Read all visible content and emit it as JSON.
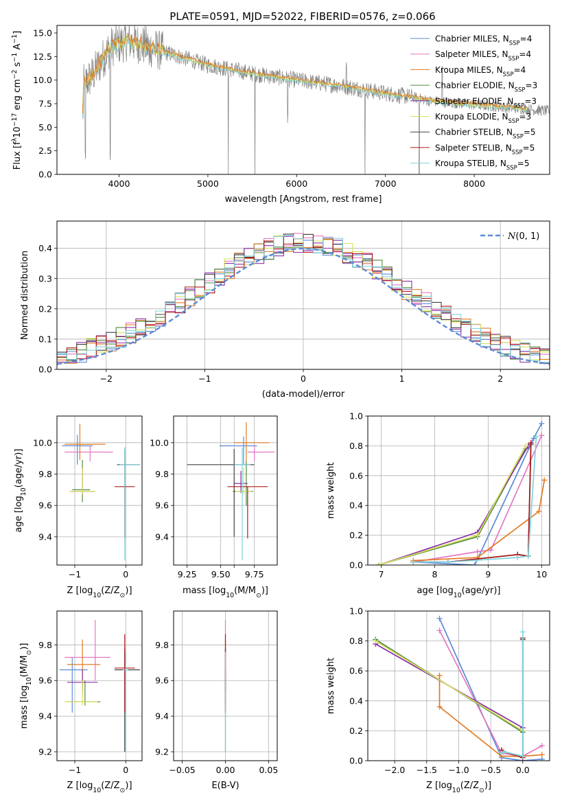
{
  "figure": {
    "title": "PLATE=0591, MJD=52022, FIBERID=0576, z=0.066"
  },
  "series_styles": [
    {
      "name": "Chabrier MILES, N$_{SSP}$=4",
      "color": "#5b8ad8",
      "label_main": "Chabrier MILES, N",
      "label_sub": "SSP",
      "label_end": "=4"
    },
    {
      "name": "Salpeter MILES, N$_{SSP}$=4",
      "color": "#e377c2",
      "label_main": "Salpeter MILES, N",
      "label_sub": "SSP",
      "label_end": "=4"
    },
    {
      "name": "Kroupa MILES, N$_{SSP}$=4",
      "color": "#e07b20",
      "label_main": "Kroupa MILES, N",
      "label_sub": "SSP",
      "label_end": "=4"
    },
    {
      "name": "Chabrier ELODIE, N$_{SSP}$=3",
      "color": "#4f8a3c",
      "label_main": "Chabrier ELODIE, N",
      "label_sub": "SSP",
      "label_end": "=3"
    },
    {
      "name": "Salpeter ELODIE, N$_{SSP}$=3",
      "color": "#8b2fa8",
      "label_main": "Salpeter ELODIE, N",
      "label_sub": "SSP",
      "label_end": "=3"
    },
    {
      "name": "Kroupa ELODIE, N$_{SSP}$=3",
      "color": "#d6e05a",
      "label_main": "Kroupa ELODIE, N",
      "label_sub": "SSP",
      "label_end": "=3"
    },
    {
      "name": "Chabrier STELIB, N$_{SSP}$=5",
      "color": "#404040",
      "label_main": "Chabrier STELIB, N",
      "label_sub": "SSP",
      "label_end": "=5"
    },
    {
      "name": "Salpeter STELIB, N$_{SSP}$=5",
      "color": "#b01818",
      "label_main": "Salpeter STELIB, N",
      "label_sub": "SSP",
      "label_end": "=5"
    },
    {
      "name": "Kroupa STELIB, N$_{SSP}$=5",
      "color": "#7fd3dc",
      "label_main": "Kroupa STELIB, N",
      "label_sub": "SSP",
      "label_end": "=5"
    }
  ],
  "chart_data": [
    {
      "id": "spectrum",
      "type": "line",
      "title": "PLATE=0591, MJD=52022, FIBERID=0576, z=0.066",
      "xlabel": "wavelength [Angstrom, rest frame]",
      "ylabel_parts": [
        "Flux [f",
        "λ",
        "10",
        "−17",
        " erg cm",
        "−2",
        " s",
        "−1",
        " A",
        "−1",
        "]"
      ],
      "xlim": [
        3300,
        8850
      ],
      "ylim": [
        0,
        15.8
      ],
      "xticks": [
        4000,
        5000,
        6000,
        7000,
        8000
      ],
      "xtick_labels": [
        "4000",
        "5000",
        "6000",
        "7000",
        "8000"
      ],
      "yticks": [
        0,
        2.5,
        5,
        7.5,
        10,
        12.5,
        15
      ],
      "ytick_labels": [
        "0.0",
        "2.5",
        "5.0",
        "7.5",
        "10.0",
        "12.5",
        "15.0"
      ],
      "grid": false,
      "legend": "upper right",
      "continuum": {
        "x": [
          3600,
          3700,
          3800,
          3900,
          4000,
          4100,
          4300,
          4500,
          5000,
          5500,
          6000,
          6500,
          7000,
          7300,
          7500,
          8000,
          8500,
          8850
        ],
        "y": [
          9.5,
          10.5,
          12.0,
          13.5,
          13.8,
          14.2,
          13.6,
          13.0,
          11.6,
          10.7,
          10.0,
          9.4,
          8.6,
          8.2,
          7.8,
          7.4,
          7.0,
          6.7
        ]
      },
      "data_color": "#808080",
      "model_colors": [
        "#7fd3dc",
        "#d6e05a",
        "#e07b20"
      ]
    },
    {
      "id": "residuals",
      "type": "histogram",
      "xlabel": "(data-model)/error",
      "ylabel": "Normed distribution",
      "xlim": [
        -2.5,
        2.5
      ],
      "ylim": [
        0,
        0.49
      ],
      "xticks": [
        -2,
        -1,
        0,
        1,
        2
      ],
      "xtick_labels": [
        "−2",
        "−1",
        "0",
        "1",
        "2"
      ],
      "yticks": [
        0,
        0.1,
        0.2,
        0.3,
        0.4
      ],
      "ytick_labels": [
        "0.0",
        "0.1",
        "0.2",
        "0.3",
        "0.4"
      ],
      "grid": true,
      "legend": "upper right",
      "normal_label_script": "N",
      "normal_label_rest": "(0, 1)",
      "normal_color": "#5b8ad8",
      "bin_width": 0.1
    },
    {
      "id": "age-Z",
      "type": "errorbar",
      "xlabel_parts": [
        "Z [log",
        "10",
        "(Z/Z",
        "⊙",
        ")]"
      ],
      "ylabel_parts": [
        "age  [log",
        "10",
        "(age/yr)]"
      ],
      "xlim": [
        -1.35,
        0.32
      ],
      "ylim": [
        9.22,
        10.17
      ],
      "xticks": [
        -1,
        0
      ],
      "xtick_labels": [
        "−1",
        "0"
      ],
      "yticks": [
        9.4,
        9.6,
        9.8,
        10.0
      ],
      "ytick_labels": [
        "9.4",
        "9.6",
        "9.8",
        "10.0"
      ],
      "grid": true,
      "points": [
        {
          "x": -0.95,
          "y": 9.98,
          "xerr": [
            0.3,
            0.3
          ],
          "yerr": [
            0.12,
            0.07
          ]
        },
        {
          "x": -0.7,
          "y": 9.94,
          "xerr": [
            0.5,
            0.45
          ],
          "yerr": [
            0.06,
            0.04
          ]
        },
        {
          "x": -0.9,
          "y": 9.99,
          "xerr": [
            0.3,
            0.5
          ],
          "yerr": [
            0.1,
            0.13
          ]
        },
        {
          "x": -0.85,
          "y": 9.7,
          "xerr": [
            0.2,
            0.15
          ],
          "yerr": [
            0.08,
            0.19
          ]
        },
        {
          "x": -0.85,
          "y": 9.69,
          "xerr": [
            0.25,
            0.25
          ],
          "yerr": [
            0.02,
            0.15
          ]
        },
        {
          "x": -0.85,
          "y": 9.69,
          "xerr": [
            0.25,
            0.25
          ],
          "yerr": [
            0.02,
            0.15
          ]
        },
        {
          "x": -0.02,
          "y": 9.86,
          "xerr": [
            0.15,
            0.3
          ],
          "yerr": [
            0.46,
            0.1
          ]
        },
        {
          "x": -0.02,
          "y": 9.72,
          "xerr": [
            0.2,
            0.2
          ],
          "yerr": [
            0.33,
            0.0
          ]
        },
        {
          "x": -0.02,
          "y": 9.86,
          "xerr": [
            0.1,
            0.3
          ],
          "yerr": [
            0.61,
            0.11
          ]
        }
      ]
    },
    {
      "id": "age-mass",
      "type": "errorbar",
      "xlabel_parts": [
        "mass [log",
        "10",
        "(M/M",
        "⊙",
        ")]"
      ],
      "ylabel_parts": [],
      "xlim": [
        9.15,
        9.92
      ],
      "ylim": [
        9.22,
        10.17
      ],
      "xticks": [
        9.25,
        9.5,
        9.6,
        9.75
      ],
      "xtick_labels": [
        "9.25",
        "9.50",
        "",
        "9.75"
      ],
      "yticks": [
        9.4,
        9.6,
        9.8,
        10.0
      ],
      "ytick_labels": [
        "9.4",
        "9.6",
        "9.8",
        "10.0"
      ],
      "grid": true,
      "points": [
        {
          "x": 9.67,
          "y": 9.98,
          "xerr": [
            0.18,
            0.1
          ],
          "yerr": [
            0.12,
            0.06
          ]
        },
        {
          "x": 9.75,
          "y": 9.94,
          "xerr": [
            0.05,
            0.15
          ],
          "yerr": [
            0.06,
            0.04
          ]
        },
        {
          "x": 9.69,
          "y": 10.0,
          "xerr": [
            0.09,
            0.17
          ],
          "yerr": [
            0.14,
            0.13
          ]
        },
        {
          "x": 9.69,
          "y": 9.69,
          "xerr": [
            0.1,
            0.05
          ],
          "yerr": [
            0.09,
            0.19
          ]
        },
        {
          "x": 9.65,
          "y": 9.74,
          "xerr": [
            0.05,
            0.05
          ],
          "yerr": [
            0.06,
            0.08
          ]
        },
        {
          "x": 9.67,
          "y": 9.69,
          "xerr": [
            0.06,
            0.06
          ],
          "yerr": [
            0.02,
            0.15
          ]
        },
        {
          "x": 9.6,
          "y": 9.86,
          "xerr": [
            0.35,
            0.15
          ],
          "yerr": [
            0.46,
            0.1
          ]
        },
        {
          "x": 9.7,
          "y": 9.72,
          "xerr": [
            0.15,
            0.15
          ],
          "yerr": [
            0.33,
            0.0
          ]
        },
        {
          "x": 9.66,
          "y": 9.86,
          "xerr": [
            0.06,
            0.06
          ],
          "yerr": [
            0.61,
            0.11
          ]
        }
      ]
    },
    {
      "id": "weight-age",
      "type": "line",
      "xlabel_parts": [
        "age  [log",
        "10",
        "(age/yr)]"
      ],
      "ylabel": "mass weight",
      "xlim": [
        6.75,
        10.15
      ],
      "ylim": [
        0,
        1.0
      ],
      "xticks": [
        7,
        8,
        9,
        10
      ],
      "xtick_labels": [
        "7",
        "8",
        "9",
        "10"
      ],
      "yticks": [
        0,
        0.2,
        0.4,
        0.6,
        0.8,
        1.0
      ],
      "ytick_labels": [
        "0.0",
        "0.2",
        "0.4",
        "0.6",
        "0.8",
        "1.0"
      ],
      "grid": true,
      "series": [
        {
          "x": [
            7.6,
            8.75,
            9.85,
            10.0
          ],
          "y": [
            0.02,
            0.0,
            0.85,
            0.95
          ]
        },
        {
          "x": [
            7.6,
            8.8,
            9.05,
            10.0
          ],
          "y": [
            0.02,
            0.09,
            0.1,
            0.87
          ]
        },
        {
          "x": [
            7.6,
            8.8,
            9.95,
            10.05
          ],
          "y": [
            0.03,
            0.05,
            0.36,
            0.57
          ]
        },
        {
          "x": [
            6.95,
            8.8,
            9.7
          ],
          "y": [
            0.0,
            0.19,
            0.78
          ]
        },
        {
          "x": [
            6.95,
            8.8,
            9.75
          ],
          "y": [
            0.0,
            0.22,
            0.8
          ]
        },
        {
          "x": [
            6.95,
            8.8,
            9.7
          ],
          "y": [
            0.0,
            0.2,
            0.8
          ]
        },
        {
          "x": [
            7.6,
            8.25,
            9.55,
            9.75,
            9.8
          ],
          "y": [
            0.02,
            0.02,
            0.07,
            0.06,
            0.81
          ]
        },
        {
          "x": [
            7.6,
            8.25,
            9.55,
            9.75,
            9.8
          ],
          "y": [
            0.02,
            0.02,
            0.07,
            0.06,
            0.82
          ]
        },
        {
          "x": [
            7.6,
            8.25,
            9.55,
            9.75,
            9.9
          ],
          "y": [
            0.02,
            0.02,
            0.05,
            0.06,
            0.86
          ]
        }
      ]
    },
    {
      "id": "mass-Z",
      "type": "errorbar",
      "xlabel_parts": [
        "Z [log",
        "10",
        "(Z/Z",
        "⊙",
        ")]"
      ],
      "ylabel_parts": [
        "mass [log",
        "10",
        "(M/M",
        "⊙",
        ")]"
      ],
      "xlim": [
        -1.35,
        0.32
      ],
      "ylim": [
        9.15,
        9.99
      ],
      "xticks": [
        -1,
        0
      ],
      "xtick_labels": [
        "−1",
        "0"
      ],
      "yticks": [
        9.2,
        9.4,
        9.6,
        9.8
      ],
      "ytick_labels": [
        "9.2",
        "9.4",
        "9.6",
        "9.8"
      ],
      "grid": true,
      "points": [
        {
          "x": -1.05,
          "y": 9.66,
          "xerr": [
            0.25,
            0.3
          ],
          "yerr": [
            0.24,
            0.07
          ]
        },
        {
          "x": -0.6,
          "y": 9.73,
          "xerr": [
            0.6,
            0.3
          ],
          "yerr": [
            0.13,
            0.21
          ]
        },
        {
          "x": -0.85,
          "y": 9.69,
          "xerr": [
            0.3,
            0.35
          ],
          "yerr": [
            0.14,
            0.14
          ]
        },
        {
          "x": -0.8,
          "y": 9.48,
          "xerr": [
            0.35,
            0.3
          ],
          "yerr": [
            0.02,
            0.12
          ]
        },
        {
          "x": -0.85,
          "y": 9.59,
          "xerr": [
            0.3,
            0.3
          ],
          "yerr": [
            0.06,
            0.07
          ]
        },
        {
          "x": -0.85,
          "y": 9.48,
          "xerr": [
            0.35,
            0.3
          ],
          "yerr": [
            0.02,
            0.12
          ]
        },
        {
          "x": -0.02,
          "y": 9.66,
          "xerr": [
            0.2,
            0.3
          ],
          "yerr": [
            0.46,
            0.12
          ]
        },
        {
          "x": -0.02,
          "y": 9.67,
          "xerr": [
            0.2,
            0.2
          ],
          "yerr": [
            0.25,
            0.19
          ]
        },
        {
          "x": 0.0,
          "y": 9.66,
          "xerr": [
            0.05,
            0.05
          ],
          "yerr": [
            0.46,
            0.1
          ]
        }
      ]
    },
    {
      "id": "mass-EBV",
      "type": "errorbar",
      "xlabel": "E(B-V)",
      "ylabel_parts": [],
      "xlim": [
        -0.06,
        0.06
      ],
      "ylim": [
        9.15,
        9.99
      ],
      "xticks": [
        -0.05,
        0.0,
        0.05
      ],
      "xtick_labels": [
        "−0.05",
        "0.00",
        "0.05"
      ],
      "yticks": [
        9.2,
        9.4,
        9.6,
        9.8
      ],
      "ytick_labels": [
        "9.2",
        "9.4",
        "9.6",
        "9.8"
      ],
      "grid": true,
      "points": [
        {
          "x": 0.0,
          "y": 9.66,
          "xerr": [
            0,
            0
          ],
          "yerr": [
            0.24,
            0.12
          ]
        },
        {
          "x": 0.0,
          "y": 9.73,
          "xerr": [
            0,
            0
          ],
          "yerr": [
            0.13,
            0.21
          ]
        },
        {
          "x": 0.0,
          "y": 9.69,
          "xerr": [
            0,
            0
          ],
          "yerr": [
            0.14,
            0.14
          ]
        },
        {
          "x": 0.0,
          "y": 9.48,
          "xerr": [
            0,
            0
          ],
          "yerr": [
            0.02,
            0.12
          ]
        },
        {
          "x": 0.0,
          "y": 9.59,
          "xerr": [
            0,
            0
          ],
          "yerr": [
            0.06,
            0.07
          ]
        },
        {
          "x": 0.0,
          "y": 9.48,
          "xerr": [
            0,
            0
          ],
          "yerr": [
            0.02,
            0.12
          ]
        },
        {
          "x": 0.0,
          "y": 9.66,
          "xerr": [
            0,
            0
          ],
          "yerr": [
            0.46,
            0.12
          ]
        },
        {
          "x": 0.0,
          "y": 9.67,
          "xerr": [
            0,
            0
          ],
          "yerr": [
            0.25,
            0.19
          ]
        },
        {
          "x": 0.0,
          "y": 9.66,
          "xerr": [
            0,
            0
          ],
          "yerr": [
            0.46,
            0.1
          ]
        }
      ]
    },
    {
      "id": "weight-Z",
      "type": "line",
      "xlabel_parts": [
        "Z [log",
        "10",
        "(Z/Z",
        "⊙",
        ")]"
      ],
      "ylabel": "mass weight",
      "xlim": [
        -2.42,
        0.42
      ],
      "ylim": [
        0,
        1.0
      ],
      "xticks": [
        -2.0,
        -1.5,
        -1.0,
        -0.5,
        0.0
      ],
      "xtick_labels": [
        "−2.0",
        "−1.5",
        "−1.0",
        "−0.5",
        "0.0"
      ],
      "yticks": [
        0,
        0.2,
        0.4,
        0.6,
        0.8,
        1.0
      ],
      "ytick_labels": [
        "0.0",
        "0.2",
        "0.4",
        "0.6",
        "0.8",
        "1.0"
      ],
      "grid": true,
      "series": [
        {
          "x": [
            -1.3,
            -0.33,
            0.0,
            0.3
          ],
          "y": [
            0.95,
            0.02,
            0.0,
            0.01
          ]
        },
        {
          "x": [
            -1.3,
            -0.33,
            0.0,
            0.3
          ],
          "y": [
            0.87,
            0.05,
            0.03,
            0.1
          ]
        },
        {
          "x": [
            -1.3,
            -1.3,
            -0.33,
            0.0,
            0.3
          ],
          "y": [
            0.57,
            0.36,
            0.03,
            0.03,
            0.04
          ]
        },
        {
          "x": [
            -2.3,
            0.0
          ],
          "y": [
            0.81,
            0.19
          ]
        },
        {
          "x": [
            -2.3,
            0.0
          ],
          "y": [
            0.78,
            0.22
          ]
        },
        {
          "x": [
            -2.3,
            0.0
          ],
          "y": [
            0.8,
            0.2
          ]
        },
        {
          "x": [
            -0.33,
            -0.3,
            0.0,
            0.0
          ],
          "y": [
            0.07,
            0.06,
            0.03,
            0.81
          ]
        },
        {
          "x": [
            -0.33,
            -0.3,
            0.0,
            0.0
          ],
          "y": [
            0.07,
            0.06,
            0.02,
            0.82
          ]
        },
        {
          "x": [
            -0.33,
            -0.3,
            0.0,
            0.0
          ],
          "y": [
            0.05,
            0.06,
            0.03,
            0.86
          ]
        }
      ]
    }
  ]
}
